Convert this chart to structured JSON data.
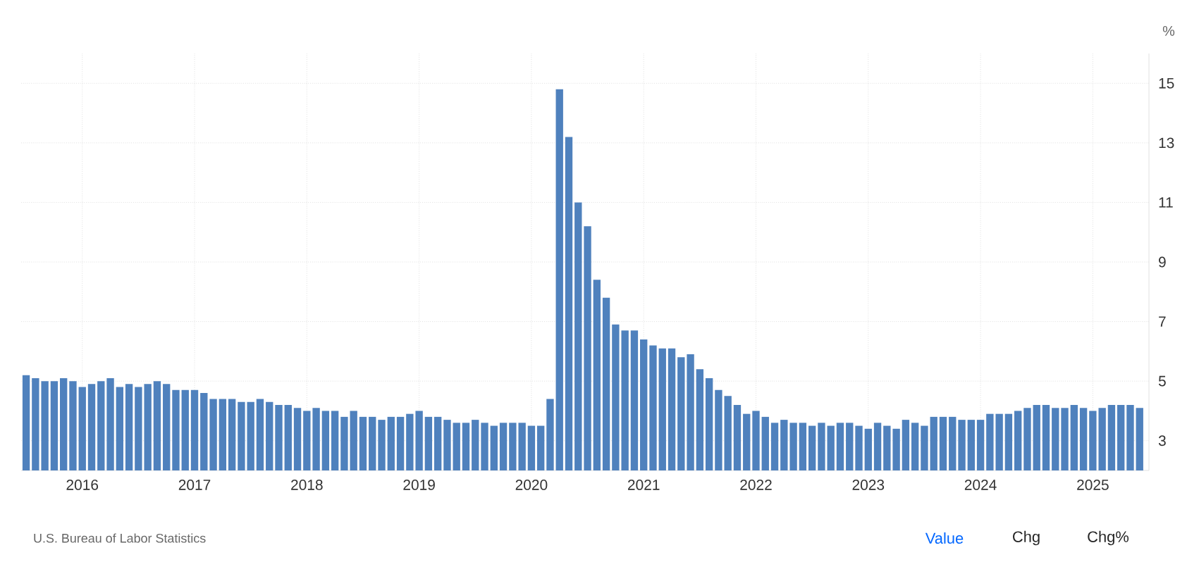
{
  "chart_data": {
    "type": "bar",
    "ylabel": "%",
    "x": [
      "2015-07",
      "2015-08",
      "2015-09",
      "2015-10",
      "2015-11",
      "2015-12",
      "2016-01",
      "2016-02",
      "2016-03",
      "2016-04",
      "2016-05",
      "2016-06",
      "2016-07",
      "2016-08",
      "2016-09",
      "2016-10",
      "2016-11",
      "2016-12",
      "2017-01",
      "2017-02",
      "2017-03",
      "2017-04",
      "2017-05",
      "2017-06",
      "2017-07",
      "2017-08",
      "2017-09",
      "2017-10",
      "2017-11",
      "2017-12",
      "2018-01",
      "2018-02",
      "2018-03",
      "2018-04",
      "2018-05",
      "2018-06",
      "2018-07",
      "2018-08",
      "2018-09",
      "2018-10",
      "2018-11",
      "2018-12",
      "2019-01",
      "2019-02",
      "2019-03",
      "2019-04",
      "2019-05",
      "2019-06",
      "2019-07",
      "2019-08",
      "2019-09",
      "2019-10",
      "2019-11",
      "2019-12",
      "2020-01",
      "2020-02",
      "2020-03",
      "2020-04",
      "2020-05",
      "2020-06",
      "2020-07",
      "2020-08",
      "2020-09",
      "2020-10",
      "2020-11",
      "2020-12",
      "2021-01",
      "2021-02",
      "2021-03",
      "2021-04",
      "2021-05",
      "2021-06",
      "2021-07",
      "2021-08",
      "2021-09",
      "2021-10",
      "2021-11",
      "2021-12",
      "2022-01",
      "2022-02",
      "2022-03",
      "2022-04",
      "2022-05",
      "2022-06",
      "2022-07",
      "2022-08",
      "2022-09",
      "2022-10",
      "2022-11",
      "2022-12",
      "2023-01",
      "2023-02",
      "2023-03",
      "2023-04",
      "2023-05",
      "2023-06",
      "2023-07",
      "2023-08",
      "2023-09",
      "2023-10",
      "2023-11",
      "2023-12",
      "2024-01",
      "2024-02",
      "2024-03",
      "2024-04",
      "2024-05",
      "2024-06",
      "2024-07",
      "2024-08",
      "2024-09",
      "2024-10",
      "2024-11",
      "2024-12",
      "2025-01",
      "2025-02",
      "2025-03",
      "2025-04",
      "2025-05",
      "2025-06"
    ],
    "values": [
      5.2,
      5.1,
      5.0,
      5.0,
      5.1,
      5.0,
      4.8,
      4.9,
      5.0,
      5.1,
      4.8,
      4.9,
      4.8,
      4.9,
      5.0,
      4.9,
      4.7,
      4.7,
      4.7,
      4.6,
      4.4,
      4.4,
      4.4,
      4.3,
      4.3,
      4.4,
      4.3,
      4.2,
      4.2,
      4.1,
      4.0,
      4.1,
      4.0,
      4.0,
      3.8,
      4.0,
      3.8,
      3.8,
      3.7,
      3.8,
      3.8,
      3.9,
      4.0,
      3.8,
      3.8,
      3.7,
      3.6,
      3.6,
      3.7,
      3.6,
      3.5,
      3.6,
      3.6,
      3.6,
      3.5,
      3.5,
      4.4,
      14.8,
      13.2,
      11.0,
      10.2,
      8.4,
      7.8,
      6.9,
      6.7,
      6.7,
      6.4,
      6.2,
      6.1,
      6.1,
      5.8,
      5.9,
      5.4,
      5.1,
      4.7,
      4.5,
      4.2,
      3.9,
      4.0,
      3.8,
      3.6,
      3.7,
      3.6,
      3.6,
      3.5,
      3.6,
      3.5,
      3.6,
      3.6,
      3.5,
      3.4,
      3.6,
      3.5,
      3.4,
      3.7,
      3.6,
      3.5,
      3.8,
      3.8,
      3.8,
      3.7,
      3.7,
      3.7,
      3.9,
      3.9,
      3.9,
      4.0,
      4.1,
      4.2,
      4.2,
      4.1,
      4.1,
      4.2,
      4.1,
      4.0,
      4.1,
      4.2,
      4.2,
      4.2,
      4.1
    ],
    "color": "#4f81bd",
    "xlim": [
      "2015-06-15",
      "2025-07-01"
    ],
    "xticks": [
      {
        "value": "2016-01",
        "label": "2016"
      },
      {
        "value": "2017-01",
        "label": "2017"
      },
      {
        "value": "2018-01",
        "label": "2018"
      },
      {
        "value": "2019-01",
        "label": "2019"
      },
      {
        "value": "2020-01",
        "label": "2020"
      },
      {
        "value": "2021-01",
        "label": "2021"
      },
      {
        "value": "2022-01",
        "label": "2022"
      },
      {
        "value": "2023-01",
        "label": "2023"
      },
      {
        "value": "2024-01",
        "label": "2024"
      },
      {
        "value": "2025-01",
        "label": "2025"
      }
    ],
    "ylim": [
      2,
      16
    ],
    "yticks": [
      3,
      5,
      7,
      9,
      11,
      13,
      15
    ],
    "grid": true,
    "annotations": [
      "U.S. Bureau of Labor Statistics",
      "Value",
      "Chg",
      "Chg%"
    ]
  }
}
